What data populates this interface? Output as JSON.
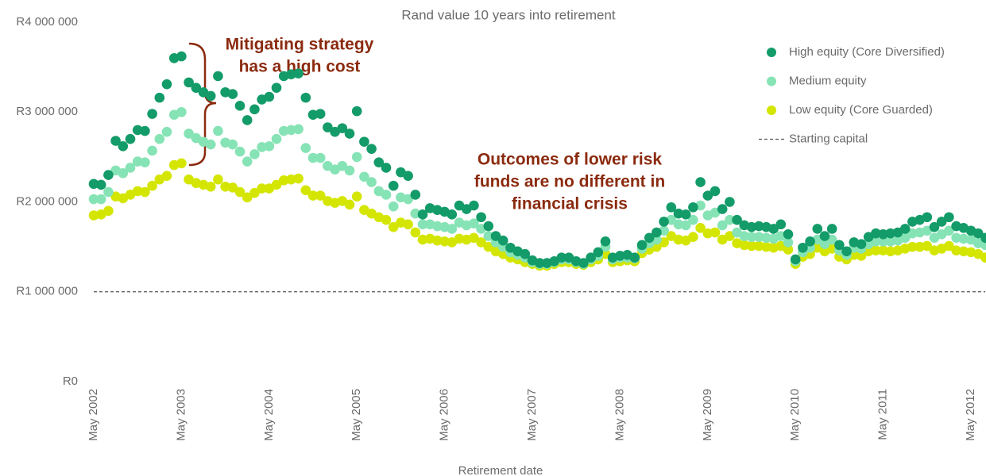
{
  "chart_data": {
    "type": "scatter",
    "title": "Rand value 10 years into retirement",
    "x_label": "Retirement date",
    "categories": [
      "May 2002",
      null,
      null,
      null,
      null,
      null,
      null,
      null,
      null,
      null,
      null,
      null,
      "May 2003",
      null,
      null,
      null,
      null,
      null,
      null,
      null,
      null,
      null,
      null,
      null,
      "May 2004",
      null,
      null,
      null,
      null,
      null,
      null,
      null,
      null,
      null,
      null,
      null,
      "May 2005",
      null,
      null,
      null,
      null,
      null,
      null,
      null,
      null,
      null,
      null,
      null,
      "May 2006",
      null,
      null,
      null,
      null,
      null,
      null,
      null,
      null,
      null,
      null,
      null,
      "May 2007",
      null,
      null,
      null,
      null,
      null,
      null,
      null,
      null,
      null,
      null,
      null,
      "May 2008",
      null,
      null,
      null,
      null,
      null,
      null,
      null,
      null,
      null,
      null,
      null,
      "May 2009",
      null,
      null,
      null,
      null,
      null,
      null,
      null,
      null,
      null,
      null,
      null,
      "May 2010",
      null,
      null,
      null,
      null,
      null,
      null,
      null,
      null,
      null,
      null,
      null,
      "May 2011",
      null,
      null,
      null,
      null,
      null,
      null,
      null,
      null,
      null,
      null,
      null,
      "May 2012",
      null,
      null
    ],
    "series": [
      {
        "name": "High equity (Core Diversified)",
        "color": "#139b69",
        "values": [
          2200000.0,
          2190000.0,
          2300000.0,
          2680000.0,
          2620000.0,
          2700000.0,
          2800000.0,
          2790000.0,
          2980000.0,
          3160000.0,
          3310000.0,
          3600000.0,
          3620000.0,
          3330000.0,
          3270000.0,
          3220000.0,
          3180000.0,
          3400000.0,
          3220000.0,
          3200000.0,
          3070000.0,
          2910000.0,
          3030000.0,
          3140000.0,
          3170000.0,
          3270000.0,
          3400000.0,
          3420000.0,
          3430000.0,
          3160000.0,
          2970000.0,
          2980000.0,
          2830000.0,
          2780000.0,
          2820000.0,
          2760000.0,
          3010000.0,
          2670000.0,
          2590000.0,
          2440000.0,
          2380000.0,
          2180000.0,
          2330000.0,
          2290000.0,
          2080000.0,
          1860000.0,
          1930000.0,
          1910000.0,
          1890000.0,
          1860000.0,
          1960000.0,
          1920000.0,
          1960000.0,
          1830000.0,
          1730000.0,
          1620000.0,
          1570000.0,
          1490000.0,
          1450000.0,
          1420000.0,
          1350000.0,
          1320000.0,
          1320000.0,
          1340000.0,
          1380000.0,
          1380000.0,
          1340000.0,
          1320000.0,
          1380000.0,
          1440000.0,
          1560000.0,
          1380000.0,
          1400000.0,
          1410000.0,
          1380000.0,
          1520000.0,
          1600000.0,
          1660000.0,
          1780000.0,
          1940000.0,
          1870000.0,
          1860000.0,
          1940000.0,
          2220000.0,
          2070000.0,
          2120000.0,
          1920000.0,
          2000000.0,
          1800000.0,
          1740000.0,
          1720000.0,
          1730000.0,
          1720000.0,
          1700000.0,
          1750000.0,
          1640000.0,
          1360000.0,
          1490000.0,
          1560000.0,
          1700000.0,
          1620000.0,
          1700000.0,
          1520000.0,
          1450000.0,
          1550000.0,
          1530000.0,
          1610000.0,
          1650000.0,
          1640000.0,
          1650000.0,
          1660000.0,
          1700000.0,
          1780000.0,
          1800000.0,
          1830000.0,
          1720000.0,
          1780000.0,
          1830000.0,
          1730000.0,
          1710000.0,
          1680000.0,
          1650000.0,
          1600000.0
        ]
      },
      {
        "name": "Medium equity",
        "color": "#86e3b5",
        "values": [
          2030000.0,
          2030000.0,
          2110000.0,
          2350000.0,
          2320000.0,
          2380000.0,
          2450000.0,
          2440000.0,
          2570000.0,
          2700000.0,
          2780000.0,
          2970000.0,
          3000000.0,
          2760000.0,
          2710000.0,
          2670000.0,
          2640000.0,
          2790000.0,
          2660000.0,
          2640000.0,
          2560000.0,
          2450000.0,
          2530000.0,
          2610000.0,
          2620000.0,
          2700000.0,
          2790000.0,
          2800000.0,
          2810000.0,
          2600000.0,
          2490000.0,
          2490000.0,
          2400000.0,
          2360000.0,
          2400000.0,
          2350000.0,
          2500000.0,
          2280000.0,
          2220000.0,
          2120000.0,
          2080000.0,
          1950000.0,
          2050000.0,
          2030000.0,
          1870000.0,
          1750000.0,
          1750000.0,
          1730000.0,
          1720000.0,
          1700000.0,
          1770000.0,
          1740000.0,
          1760000.0,
          1700000.0,
          1620000.0,
          1550000.0,
          1500000.0,
          1440000.0,
          1410000.0,
          1380000.0,
          1330000.0,
          1310000.0,
          1310000.0,
          1330000.0,
          1360000.0,
          1360000.0,
          1330000.0,
          1310000.0,
          1360000.0,
          1400000.0,
          1500000.0,
          1360000.0,
          1380000.0,
          1380000.0,
          1370000.0,
          1480000.0,
          1540000.0,
          1580000.0,
          1680000.0,
          1800000.0,
          1750000.0,
          1740000.0,
          1800000.0,
          1960000.0,
          1850000.0,
          1880000.0,
          1740000.0,
          1800000.0,
          1660000.0,
          1620000.0,
          1610000.0,
          1610000.0,
          1600000.0,
          1590000.0,
          1620000.0,
          1550000.0,
          1340000.0,
          1440000.0,
          1490000.0,
          1580000.0,
          1530000.0,
          1580000.0,
          1460000.0,
          1410000.0,
          1490000.0,
          1480000.0,
          1530000.0,
          1560000.0,
          1560000.0,
          1560000.0,
          1570000.0,
          1600000.0,
          1650000.0,
          1660000.0,
          1680000.0,
          1600000.0,
          1640000.0,
          1680000.0,
          1600000.0,
          1590000.0,
          1580000.0,
          1540000.0,
          1520000.0
        ]
      },
      {
        "name": "Low equity (Core Guarded)",
        "color": "#d4e600",
        "values": [
          1850000.0,
          1860000.0,
          1900000.0,
          2060000.0,
          2040000.0,
          2080000.0,
          2120000.0,
          2110000.0,
          2180000.0,
          2250000.0,
          2290000.0,
          2410000.0,
          2430000.0,
          2250000.0,
          2210000.0,
          2190000.0,
          2170000.0,
          2250000.0,
          2170000.0,
          2160000.0,
          2110000.0,
          2050000.0,
          2100000.0,
          2150000.0,
          2150000.0,
          2190000.0,
          2240000.0,
          2250000.0,
          2260000.0,
          2130000.0,
          2070000.0,
          2070000.0,
          2010000.0,
          1990000.0,
          2010000.0,
          1970000.0,
          2060000.0,
          1910000.0,
          1870000.0,
          1830000.0,
          1800000.0,
          1720000.0,
          1770000.0,
          1750000.0,
          1660000.0,
          1580000.0,
          1590000.0,
          1570000.0,
          1560000.0,
          1550000.0,
          1590000.0,
          1580000.0,
          1600000.0,
          1550000.0,
          1500000.0,
          1450000.0,
          1420000.0,
          1380000.0,
          1360000.0,
          1330000.0,
          1310000.0,
          1290000.0,
          1290000.0,
          1310000.0,
          1330000.0,
          1330000.0,
          1310000.0,
          1300000.0,
          1330000.0,
          1360000.0,
          1420000.0,
          1330000.0,
          1340000.0,
          1350000.0,
          1340000.0,
          1430000.0,
          1470000.0,
          1500000.0,
          1550000.0,
          1620000.0,
          1580000.0,
          1570000.0,
          1610000.0,
          1710000.0,
          1650000.0,
          1660000.0,
          1580000.0,
          1620000.0,
          1540000.0,
          1520000.0,
          1510000.0,
          1510000.0,
          1500000.0,
          1490000.0,
          1510000.0,
          1470000.0,
          1310000.0,
          1390000.0,
          1420000.0,
          1490000.0,
          1450000.0,
          1480000.0,
          1390000.0,
          1360000.0,
          1410000.0,
          1400000.0,
          1450000.0,
          1460000.0,
          1460000.0,
          1450000.0,
          1460000.0,
          1480000.0,
          1500000.0,
          1500000.0,
          1510000.0,
          1460000.0,
          1480000.0,
          1510000.0,
          1460000.0,
          1450000.0,
          1440000.0,
          1420000.0,
          1380000.0
        ]
      }
    ],
    "reference_line": {
      "name": "Starting capital",
      "value": 1000000,
      "color": "#555555"
    },
    "ylim": [
      0,
      4000000
    ],
    "yticks": [
      {
        "value": 0,
        "label": "R0"
      },
      {
        "value": 1000000,
        "label": "R1 000 000"
      },
      {
        "value": 2000000,
        "label": "R2 000 000"
      },
      {
        "value": 3000000,
        "label": "R3 000 000"
      },
      {
        "value": 4000000,
        "label": "R4 000 000"
      }
    ],
    "legend": "top-right",
    "annotations": [
      {
        "lines": [
          "Mitigating strategy",
          "has a high cost"
        ]
      },
      {
        "lines": [
          "Outcomes of lower risk",
          "funds are no different in",
          "financial crisis"
        ]
      }
    ]
  }
}
